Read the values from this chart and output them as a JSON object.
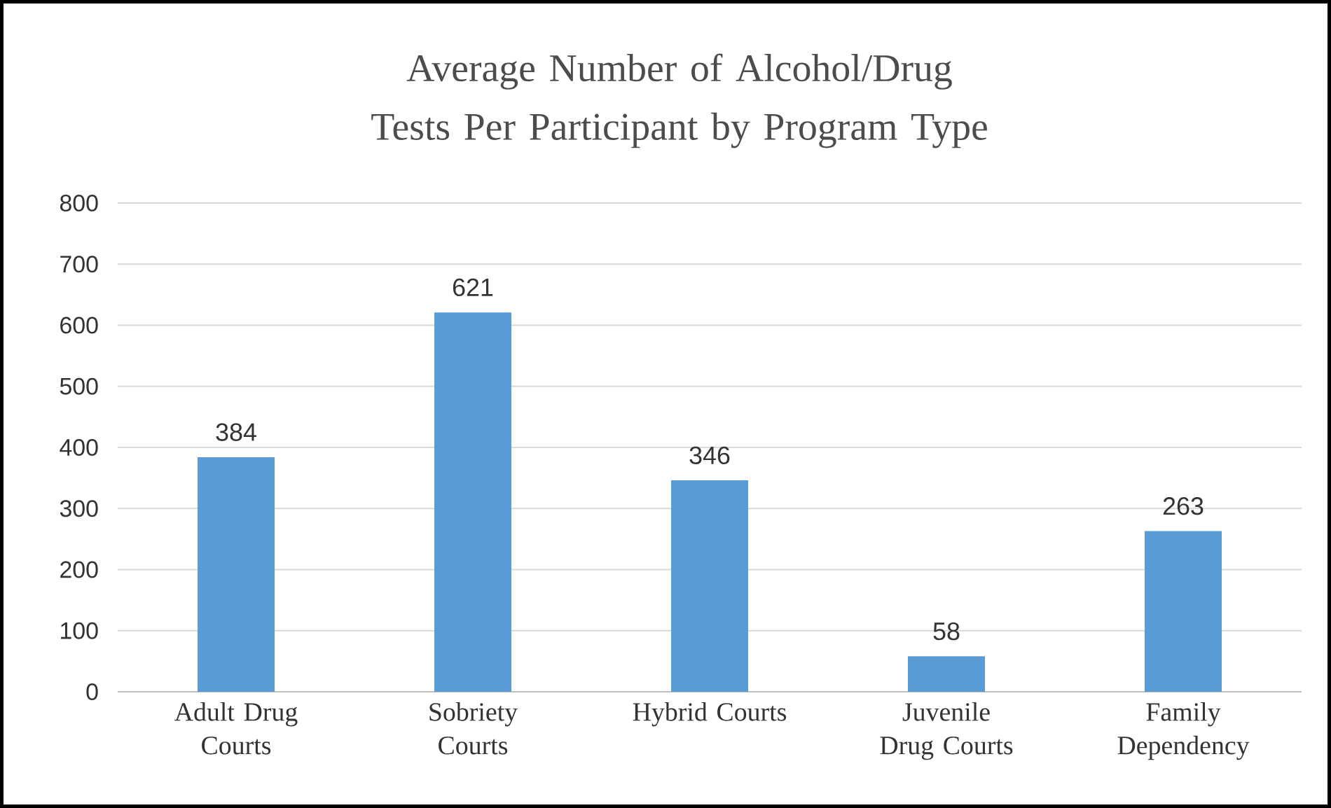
{
  "chart_data": {
    "type": "bar",
    "title": "Average Number of Alcohol/Drug Tests Per Participant by Program Type",
    "categories": [
      "Adult Drug Courts",
      "Sobriety Courts",
      "Hybrid Courts",
      "Juvenile Drug Courts",
      "Family Dependency"
    ],
    "values": [
      384,
      621,
      346,
      58,
      263
    ],
    "color": "#5b9bd5",
    "ylim": [
      0,
      800
    ],
    "yticks": [
      0,
      100,
      200,
      300,
      400,
      500,
      600,
      700,
      800
    ],
    "grid": "y",
    "data_labels": true
  }
}
